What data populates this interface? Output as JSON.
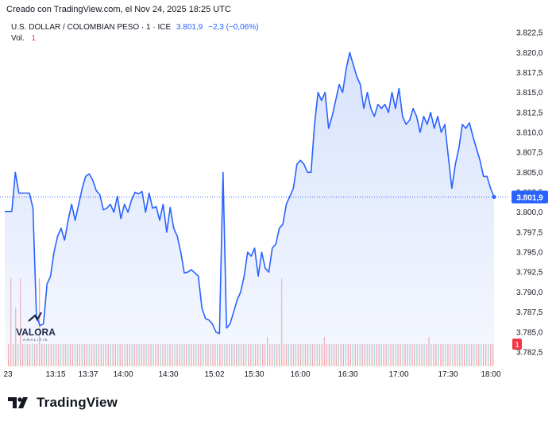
{
  "caption": "Creado con TradingView.com, el Nov 24, 2025 18:25 UTC",
  "legend": {
    "symbol": "U.S. DOLLAR / COLOMBIAN PESO · 1 · ICE",
    "last": "3.801,9",
    "change": "−2,3 (−0,06%)",
    "vol_label": "Vol.",
    "vol_value": "1"
  },
  "watermark": {
    "name": "VALORA",
    "sub": "ANALITIK"
  },
  "footer": {
    "brand": "TradingView",
    "logo_icon": "tradingview-logo-icon"
  },
  "colors": {
    "line": "#2962ff",
    "fill": "#d6e1fc",
    "vol_up": "#a4d8d2",
    "vol_down": "#f5a6ab",
    "last_badge": "#2962ff",
    "vol_badge": "#f23645"
  },
  "chart_data": {
    "type": "area",
    "title": "U.S. DOLLAR / COLOMBIAN PESO",
    "interval": "1",
    "x_tick_labels": [
      "23",
      "13:15",
      "13:37",
      "14:00",
      "14:30",
      "15:02",
      "15:30",
      "16:00",
      "16:30",
      "17:00",
      "17:30",
      "18:00"
    ],
    "y_tick_labels": [
      "3.822,5",
      "3.820,0",
      "3.817,5",
      "3.815,0",
      "3.812,5",
      "3.810,0",
      "3.807,5",
      "3.805,0",
      "3.802,5",
      "3.800,0",
      "3.797,5",
      "3.795,0",
      "3.792,5",
      "3.790,0",
      "3.787,5",
      "3.785,0",
      "3.782,5"
    ],
    "y_ticks": [
      3822.5,
      3820.0,
      3817.5,
      3815.0,
      3812.5,
      3810.0,
      3807.5,
      3805.0,
      3802.5,
      3800.0,
      3797.5,
      3795.0,
      3792.5,
      3790.0,
      3787.5,
      3785.0,
      3782.5
    ],
    "ylim": [
      3781.5,
      3823.5
    ],
    "last_value": 3801.9,
    "last_label": "3.801,9",
    "volume_last_label": "1",
    "grid": false,
    "series": [
      {
        "values": [
          3800.1,
          3800.1,
          3800.1,
          3805.0,
          3802.4,
          3802.4,
          3802.4,
          3802.4,
          3800.5,
          3787.0,
          3785.8,
          3786.0,
          3791.0,
          3792.0,
          3795.0,
          3797.0,
          3798.0,
          3796.5,
          3799.0,
          3801.0,
          3799.0,
          3801.0,
          3803.0,
          3804.5,
          3804.8,
          3804.0,
          3802.7,
          3802.2,
          3800.3,
          3800.5,
          3801.0,
          3800.0,
          3802.0,
          3799.2,
          3801.0,
          3800.0,
          3801.5,
          3802.5,
          3802.3,
          3802.6,
          3800.0,
          3802.4,
          3800.5,
          3800.7,
          3799.0,
          3801.0,
          3797.5,
          3800.6,
          3798.0,
          3797.0,
          3795.0,
          3792.4,
          3792.5,
          3792.8,
          3792.4,
          3792.0,
          3788.0,
          3786.7,
          3786.5,
          3786.0,
          3785.0,
          3784.8,
          3805.0,
          3785.5,
          3786.0,
          3787.5,
          3789.0,
          3790.0,
          3792.0,
          3795.0,
          3794.5,
          3795.5,
          3792.0,
          3795.0,
          3793.0,
          3792.5,
          3795.5,
          3796.0,
          3798.0,
          3798.5,
          3801.0,
          3802.0,
          3803.0,
          3806.0,
          3806.5,
          3806.0,
          3805.0,
          3805.0,
          3811.0,
          3815.0,
          3814.0,
          3815.0,
          3810.5,
          3812.0,
          3814.0,
          3816.0,
          3815.0,
          3818.0,
          3820.0,
          3818.5,
          3817.0,
          3816.0,
          3813.0,
          3815.0,
          3813.0,
          3812.0,
          3813.5,
          3813.0,
          3813.5,
          3812.5,
          3815.0,
          3813.0,
          3815.5,
          3812.0,
          3811.0,
          3811.5,
          3813.0,
          3812.0,
          3810.0,
          3812.0,
          3811.0,
          3812.5,
          3810.5,
          3812.0,
          3810.0,
          3811.0,
          3807.0,
          3803.0,
          3806.0,
          3808.0,
          3811.0,
          3810.5,
          3811.2,
          3809.5,
          3808.0,
          3806.5,
          3804.5,
          3804.5,
          3803.0,
          3801.9
        ]
      }
    ],
    "volume": {
      "baseline_level": 1,
      "spikes": [
        {
          "index": 0,
          "value": 4,
          "color": "down"
        },
        {
          "index": 1,
          "value": 6,
          "color": "down"
        },
        {
          "index": 2,
          "value": 4,
          "color": "down"
        },
        {
          "index": 3,
          "value": 6,
          "color": "down"
        },
        {
          "index": 8,
          "value": 2,
          "color": "down"
        },
        {
          "index": 9,
          "value": 6,
          "color": "down"
        },
        {
          "index": 34,
          "value": 6,
          "color": "down"
        },
        {
          "index": 60,
          "value": 6,
          "color": "down"
        },
        {
          "index": 74,
          "value": 2,
          "color": "down"
        },
        {
          "index": 78,
          "value": 6,
          "color": "down"
        },
        {
          "index": 91,
          "value": 2,
          "color": "down"
        },
        {
          "index": 121,
          "value": 2,
          "color": "down"
        }
      ]
    }
  }
}
